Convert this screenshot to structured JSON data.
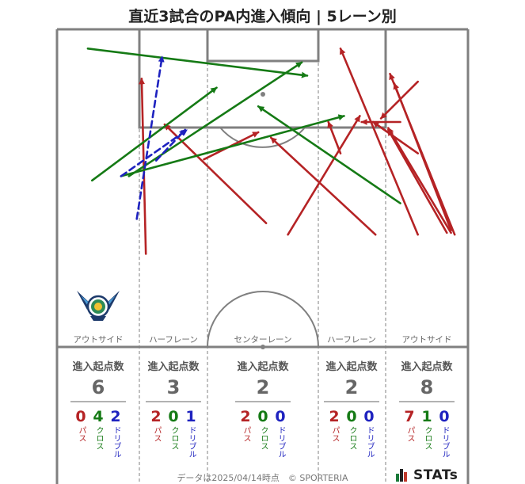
{
  "title": "直近3試合のPA内進入傾向 | 5レーン別",
  "footer": "データは2025/04/14時点　© SPORTERIA",
  "brand": "STATs",
  "colors": {
    "pass": "#b52325",
    "cross": "#157a15",
    "dribble": "#1e22bf",
    "pitch_line": "#808080"
  },
  "icons": {
    "team_crest": "team-crest-icon",
    "brand_logo": "stats-logo-icon"
  },
  "lanes": [
    {
      "name": "アウトサイド",
      "count_label": "進入起点数",
      "count": "6",
      "pass": "0",
      "cross": "4",
      "dribble": "2"
    },
    {
      "name": "ハーフレーン",
      "count_label": "進入起点数",
      "count": "3",
      "pass": "2",
      "cross": "0",
      "dribble": "1"
    },
    {
      "name": "センターレーン",
      "count_label": "進入起点数",
      "count": "2",
      "pass": "2",
      "cross": "0",
      "dribble": "0"
    },
    {
      "name": "ハーフレーン",
      "count_label": "進入起点数",
      "count": "2",
      "pass": "2",
      "cross": "0",
      "dribble": "0"
    },
    {
      "name": "アウトサイド",
      "count_label": "進入起点数",
      "count": "8",
      "pass": "7",
      "cross": "1",
      "dribble": "0"
    }
  ],
  "legend_labels": {
    "pass": "パス",
    "cross": "クロス",
    "dribble": "ドリブル"
  },
  "chart_data": {
    "type": "scatter",
    "pitch": {
      "length": 105,
      "width": 68,
      "view": "attacking-half"
    },
    "coordinate_note": "x = metres across pitch from left touchline (0–68), y = metres from attacking goal line",
    "arrows": [
      {
        "type": "pass",
        "x1": 14.7,
        "y1": 37.3,
        "x2": 14.0,
        "y2": 8.2
      },
      {
        "type": "pass",
        "x1": 34.6,
        "y1": 32.2,
        "x2": 17.8,
        "y2": 15.8
      },
      {
        "type": "pass",
        "x1": 24.3,
        "y1": 21.6,
        "x2": 33.3,
        "y2": 17.1
      },
      {
        "type": "pass",
        "x1": 52.7,
        "y1": 34.1,
        "x2": 35.4,
        "y2": 18.0
      },
      {
        "type": "pass",
        "x1": 38.2,
        "y1": 34.1,
        "x2": 50.1,
        "y2": 14.4
      },
      {
        "type": "pass",
        "x1": 46.9,
        "y1": 20.6,
        "x2": 44.9,
        "y2": 15.4
      },
      {
        "type": "pass",
        "x1": 59.7,
        "y1": 34.1,
        "x2": 46.9,
        "y2": 3.2
      },
      {
        "type": "pass",
        "x1": 65.8,
        "y1": 34.1,
        "x2": 55.1,
        "y2": 7.4
      },
      {
        "type": "pass",
        "x1": 65.2,
        "y1": 33.4,
        "x2": 55.8,
        "y2": 9.0
      },
      {
        "type": "pass",
        "x1": 65.2,
        "y1": 33.8,
        "x2": 54.8,
        "y2": 16.4
      },
      {
        "type": "pass",
        "x1": 64.5,
        "y1": 33.8,
        "x2": 54.8,
        "y2": 16.7
      },
      {
        "type": "pass",
        "x1": 59.7,
        "y1": 20.6,
        "x2": 52.3,
        "y2": 15.4
      },
      {
        "type": "pass",
        "x1": 59.7,
        "y1": 8.7,
        "x2": 53.6,
        "y2": 14.8
      },
      {
        "type": "pass",
        "x1": 56.8,
        "y1": 15.4,
        "x2": 50.4,
        "y2": 15.4
      },
      {
        "type": "cross",
        "x1": 5.1,
        "y1": 3.2,
        "x2": 41.4,
        "y2": 7.7
      },
      {
        "type": "cross",
        "x1": 5.8,
        "y1": 25.1,
        "x2": 26.4,
        "y2": 9.7
      },
      {
        "type": "cross",
        "x1": 11.9,
        "y1": 24.4,
        "x2": 40.5,
        "y2": 5.5
      },
      {
        "type": "cross",
        "x1": 10.6,
        "y1": 24.4,
        "x2": 47.5,
        "y2": 14.4
      },
      {
        "type": "cross",
        "x1": 56.8,
        "y1": 28.9,
        "x2": 33.3,
        "y2": 12.8
      },
      {
        "type": "dribble",
        "x1": 13.2,
        "y1": 31.5,
        "x2": 17.4,
        "y2": 4.5
      },
      {
        "type": "dribble",
        "x1": 10.6,
        "y1": 24.4,
        "x2": 21.5,
        "y2": 16.7
      },
      {
        "type": "dribble",
        "x1": 16.4,
        "y1": 21.8,
        "x2": 21.2,
        "y2": 16.7
      }
    ]
  }
}
